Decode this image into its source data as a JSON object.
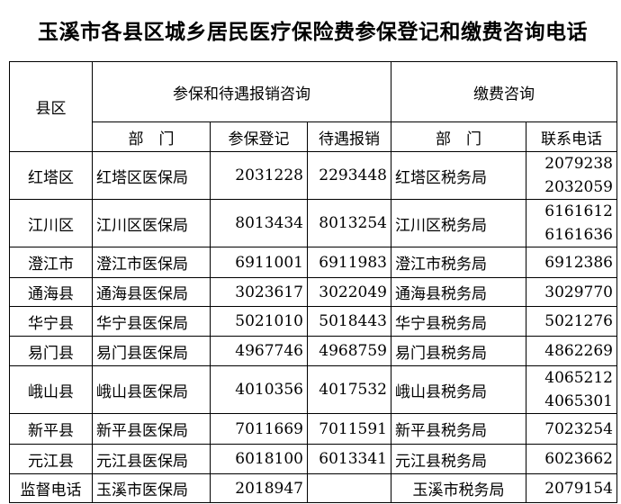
{
  "title": "玉溪市各县区城乡居民医疗保险费参保登记和缴费咨询电话",
  "headers": {
    "county": "县区",
    "group1": "参保和待遇报销咨询",
    "group2": "缴费咨询",
    "dept1": "部　门",
    "register": "参保登记",
    "reimburse": "待遇报销",
    "dept2": "部　门",
    "phone": "联系电话"
  },
  "rows": [
    {
      "county": "红塔区",
      "bureau": "红塔区医保局",
      "register": "2031228",
      "reimburse": "2293448",
      "tax": "红塔区税务局",
      "phone1": "2079238",
      "phone2": "2032059"
    },
    {
      "county": "江川区",
      "bureau": "江川区医保局",
      "register": "8013434",
      "reimburse": "8013254",
      "tax": "江川区税务局",
      "phone1": "6161612",
      "phone2": "6161636"
    },
    {
      "county": "澄江市",
      "bureau": "澄江市医保局",
      "register": "6911001",
      "reimburse": "6911983",
      "tax": "澄江市税务局",
      "phone1": "6912386"
    },
    {
      "county": "通海县",
      "bureau": "通海县医保局",
      "register": "3023617",
      "reimburse": "3022049",
      "tax": "通海县税务局",
      "phone1": "3029770"
    },
    {
      "county": "华宁县",
      "bureau": "华宁县医保局",
      "register": "5021010",
      "reimburse": "5018443",
      "tax": "华宁县税务局",
      "phone1": "5021276"
    },
    {
      "county": "易门县",
      "bureau": "易门县医保局",
      "register": "4967746",
      "reimburse": "4968759",
      "tax": "易门县税务局",
      "phone1": "4862269"
    },
    {
      "county": "峨山县",
      "bureau": "峨山县医保局",
      "register": "4010356",
      "reimburse": "4017532",
      "tax": "峨山县税务局",
      "phone1": "4065212",
      "phone2": "4065301"
    },
    {
      "county": "新平县",
      "bureau": "新平县医保局",
      "register": "7011669",
      "reimburse": "7011591",
      "tax": "新平县税务局",
      "phone1": "7023254"
    },
    {
      "county": "元江县",
      "bureau": "元江县医保局",
      "register": "6018100",
      "reimburse": "6013341",
      "tax": "元江县税务局",
      "phone1": "6023662"
    }
  ],
  "supervision": {
    "county": "监督电话",
    "bureau": "玉溪市医保局",
    "register": "2018947",
    "reimburse": "",
    "tax": "玉溪市税务局",
    "phone1": "2079154"
  }
}
